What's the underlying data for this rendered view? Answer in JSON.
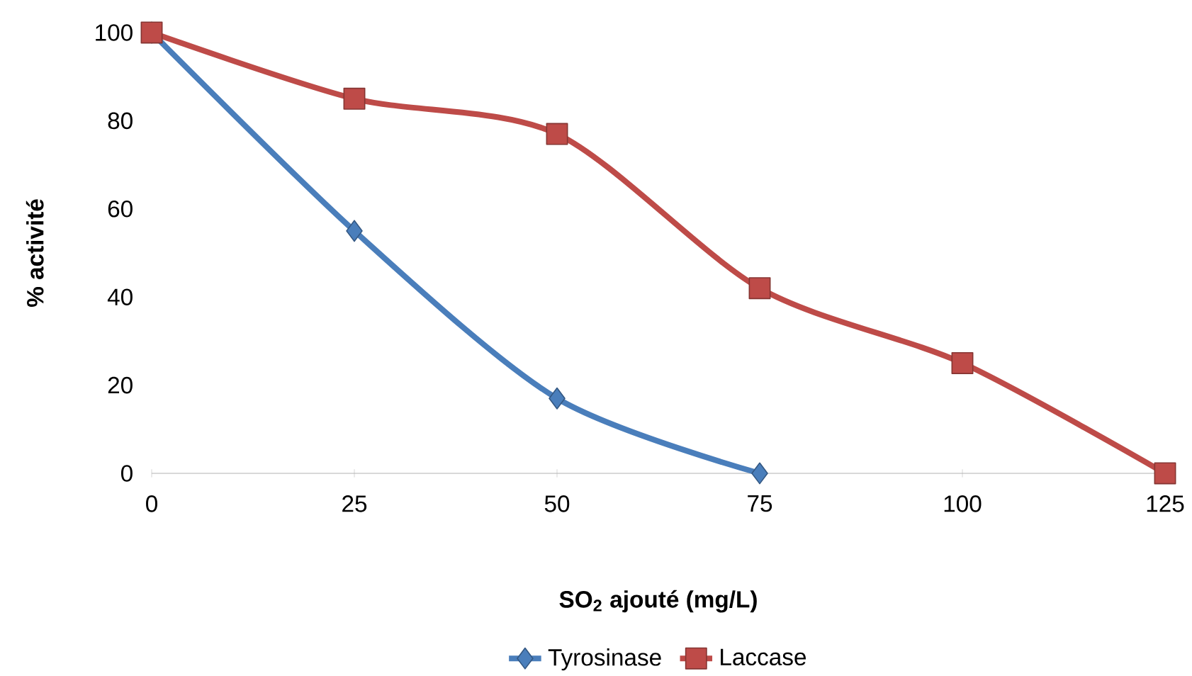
{
  "chart_data": {
    "type": "line",
    "xlabel": "SO$_{2}$ ajouté (mg/L)",
    "ylabel": "% activité",
    "x": [
      0,
      25,
      50,
      75,
      100,
      125
    ],
    "series": [
      {
        "name": "Tyrosinase",
        "color": "#4a7ebb",
        "marker": "diamond",
        "values": [
          100,
          55,
          17,
          0,
          null,
          null
        ]
      },
      {
        "name": "Laccase",
        "color": "#be4b48",
        "marker": "square",
        "values": [
          100,
          85,
          77,
          42,
          25,
          0
        ]
      }
    ],
    "xlim": [
      0,
      125
    ],
    "xticks": [
      0,
      25,
      50,
      75,
      100,
      125
    ],
    "ylim": [
      0,
      100
    ],
    "yticks": [
      0,
      20,
      40,
      60,
      80,
      100
    ],
    "grid": false,
    "legend": "bottom",
    "line_style": "solid"
  }
}
